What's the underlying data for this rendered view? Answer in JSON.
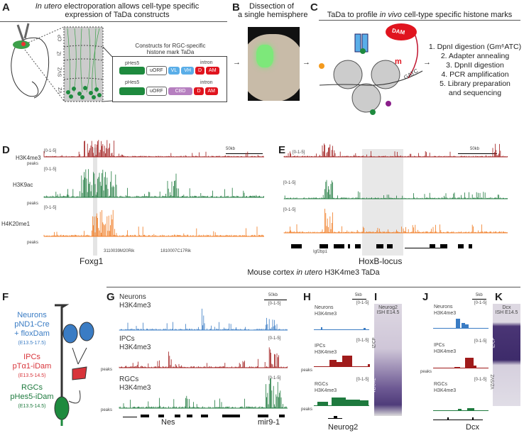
{
  "colors": {
    "neurons": "#3a7cc4",
    "ipcs": "#a01b1b",
    "rgcs": "#1e7a3e",
    "h4k20": "#f07a20",
    "dam": "#e0141e",
    "cbd": "#b67fc0",
    "vlvh": "#5aaee8"
  },
  "panel_labels": [
    "A",
    "B",
    "C",
    "D",
    "E",
    "F",
    "G",
    "H",
    "I",
    "J",
    "K"
  ],
  "A": {
    "title_italic": "In utero",
    "title_rest": "electroporation allows cell-type specific",
    "title_line2": "expression of TaDa constructs",
    "layers": [
      "CP",
      "IZ",
      "SVZ",
      "VZ"
    ],
    "constructs_title": [
      "Constructs for RGC-specific",
      "histone mark TaDa"
    ],
    "construct1": [
      "pHes5",
      "uORF",
      "VL",
      "VH",
      "intron",
      "D",
      "AM"
    ],
    "construct2": [
      "pHes5",
      "uORF",
      "CBD",
      "intron",
      "D",
      "AM"
    ]
  },
  "B": {
    "title": [
      "Dissection of",
      "a single hemisphere"
    ]
  },
  "C": {
    "title_pre": "TaDa to profile",
    "title_italic": "in vivo",
    "title_post": "cell-type specific histone marks",
    "dam": "DAM",
    "m": "m",
    "gatc": "GATC",
    "steps": [
      "1. DpnI digestion (Gm⁶ATC)",
      "2. Adapter annealing",
      "3. DpnII digestion",
      "4. PCR amplification",
      "5. Library preparation",
      "and sequencing"
    ]
  },
  "D": {
    "scale": "50kb",
    "range": "[0-1-5]",
    "tracks": [
      "H3K4me3",
      "H3K9ac",
      "H4K20me1"
    ],
    "peaks": "peaks",
    "genes": [
      "3110039M20Rik",
      "1810007C17Rik"
    ],
    "locus": "Foxg1"
  },
  "E": {
    "scale": "50kb",
    "range": "[0-1-5]",
    "genes": [
      "Igf2bp1"
    ],
    "locus": "HoxB-locus"
  },
  "section_title": {
    "pre": "Mouse cortex",
    "italic": "in utero",
    "post": "H3K4me3 TaDa"
  },
  "F": {
    "neurons": [
      "Neurons",
      "pND1-Cre",
      "+ floxDam",
      "(E13.5-17.5)"
    ],
    "ipcs": [
      "IPCs",
      "pTα1-iDam",
      "(E13.5-14.5)"
    ],
    "rgcs": [
      "RGCs",
      "pHes5-iDam",
      "(E13.5-14.5)"
    ]
  },
  "G": {
    "scale": "50kb",
    "range": "[0-1-5]",
    "tracks": [
      [
        "Neurons",
        "H3K4me3"
      ],
      [
        "IPCs",
        "H3K4me3"
      ],
      [
        "RGCs",
        "H3K4me3"
      ]
    ],
    "peaks": "peaks",
    "genes": [
      "Nes",
      "mir9-1"
    ]
  },
  "H": {
    "scale": "5kb",
    "range": "[0-1-5]",
    "tracks": [
      [
        "Neurons",
        "H3K4me3"
      ],
      [
        "IPCs",
        "H3K4me3"
      ],
      [
        "RGCs",
        "H3K4me3"
      ]
    ],
    "peaks": "peaks",
    "gene": "Neurog2"
  },
  "I": {
    "title": [
      "Neurog2",
      "ISH E14.5"
    ],
    "zones": [
      "IZ/CP",
      "VZ/SVZ"
    ]
  },
  "J": {
    "scale": "5kb",
    "range": "[0-1-5]",
    "tracks": [
      [
        "Neurons",
        "H3K4me3"
      ],
      [
        "IPCs",
        "H3K4me3"
      ],
      [
        "RGCs",
        "H3K4me3"
      ]
    ],
    "peaks": "peaks",
    "gene": "Dcx"
  },
  "K": {
    "title": [
      "Dcx",
      "ISH E14.5"
    ],
    "zones": [
      "IZ/CP",
      "VZ/SVZ"
    ]
  }
}
